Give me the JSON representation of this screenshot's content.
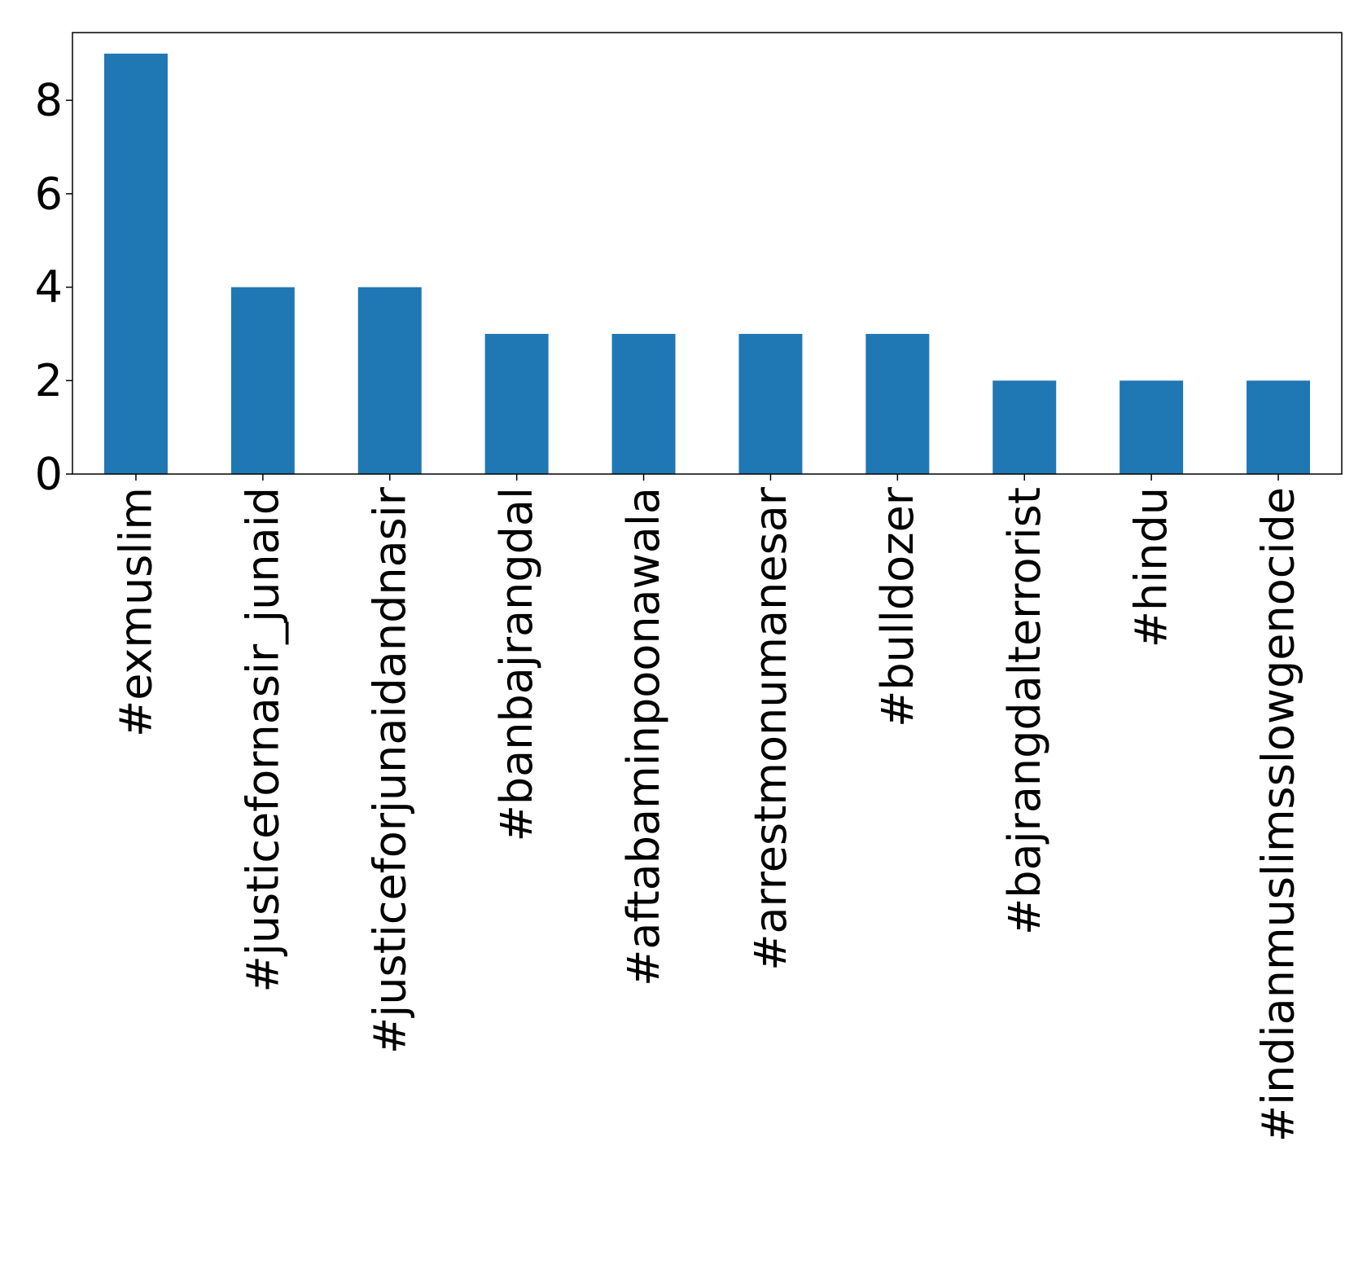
{
  "chart_data": {
    "type": "bar",
    "categories": [
      "#exmuslim",
      "#justicefornasir_junaid",
      "#justiceforjunaidandnasir",
      "#banbajrangdal",
      "#aftabaminpoonawala",
      "#arrestmonumanesar",
      "#bulldozer",
      "#bajrangdalterrorist",
      "#hindu",
      "#indianmuslimsslowgenocide"
    ],
    "values": [
      9,
      4,
      4,
      3,
      3,
      3,
      3,
      2,
      2,
      2
    ],
    "ylim": [
      0,
      9.45
    ],
    "yticks": [
      0,
      2,
      4,
      6,
      8
    ],
    "grid": false,
    "bar_color": "#1f77b4"
  }
}
